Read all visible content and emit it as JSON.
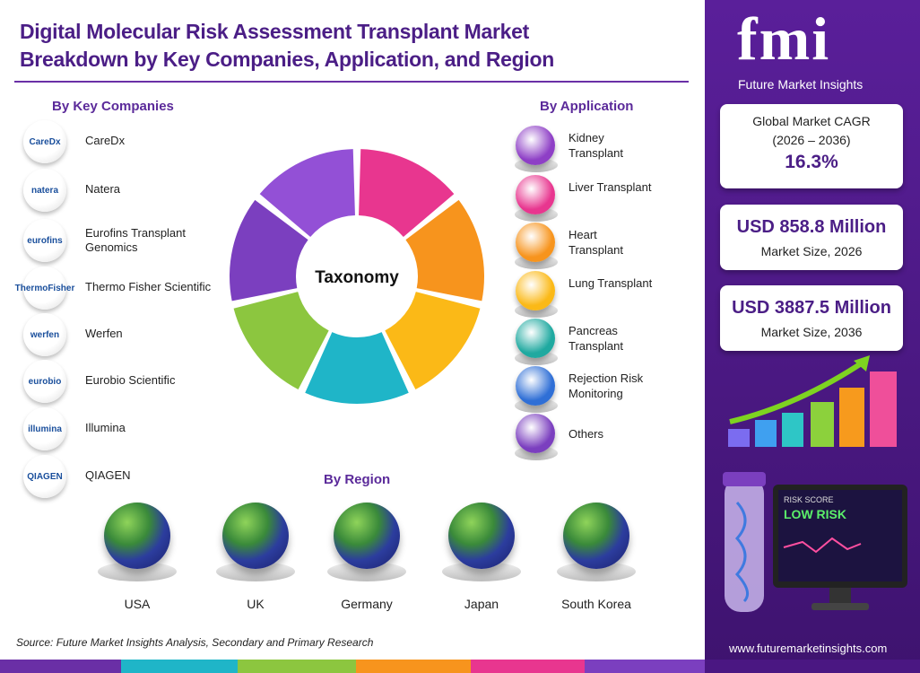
{
  "header": {
    "title_line1": "Digital Molecular Risk Assessment Transplant Market",
    "title_line2": "Breakdown by Key Companies, Application, and Region"
  },
  "companies": {
    "heading": "By Key Companies",
    "items": [
      {
        "logo": "CareDx",
        "name": "CareDx"
      },
      {
        "logo": "natera",
        "name": "Natera"
      },
      {
        "logo": "eurofins",
        "name": "Eurofins Transplant Genomics"
      },
      {
        "logo": "ThermoFisher",
        "name": "Thermo Fisher Scientific"
      },
      {
        "logo": "werfen",
        "name": "Werfen"
      },
      {
        "logo": "eurobio",
        "name": "Eurobio Scientific"
      },
      {
        "logo": "illumina",
        "name": "Illumina"
      },
      {
        "logo": "QIAGEN",
        "name": "QIAGEN"
      }
    ]
  },
  "center": "Taxonomy",
  "applications": {
    "heading": "By Application",
    "items": [
      "Kidney Transplant",
      "Liver Transplant",
      "Heart Transplant",
      "Lung Transplant",
      "Pancreas Transplant",
      "Rejection Risk Monitoring",
      "Others"
    ]
  },
  "regions": {
    "heading": "By Region",
    "items": [
      "USA",
      "UK",
      "Germany",
      "Japan",
      "South Korea"
    ]
  },
  "source": "Source: Future Market Insights Analysis, Secondary and Primary Research",
  "brand": {
    "logo": "fmi",
    "name": "Future Market Insights",
    "website": "www.futuremarketinsights.com"
  },
  "stats": [
    {
      "label": "Global Market CAGR",
      "period": "(2026 – 2036)",
      "value": "16.3%"
    },
    {
      "value": "USD 858.8 Million",
      "label": "Market Size, 2026"
    },
    {
      "value": "USD 3887.5 Million",
      "label": "Market Size, 2036"
    }
  ],
  "monitor": {
    "caption": "RISK SCORE",
    "status": "LOW RISK"
  }
}
